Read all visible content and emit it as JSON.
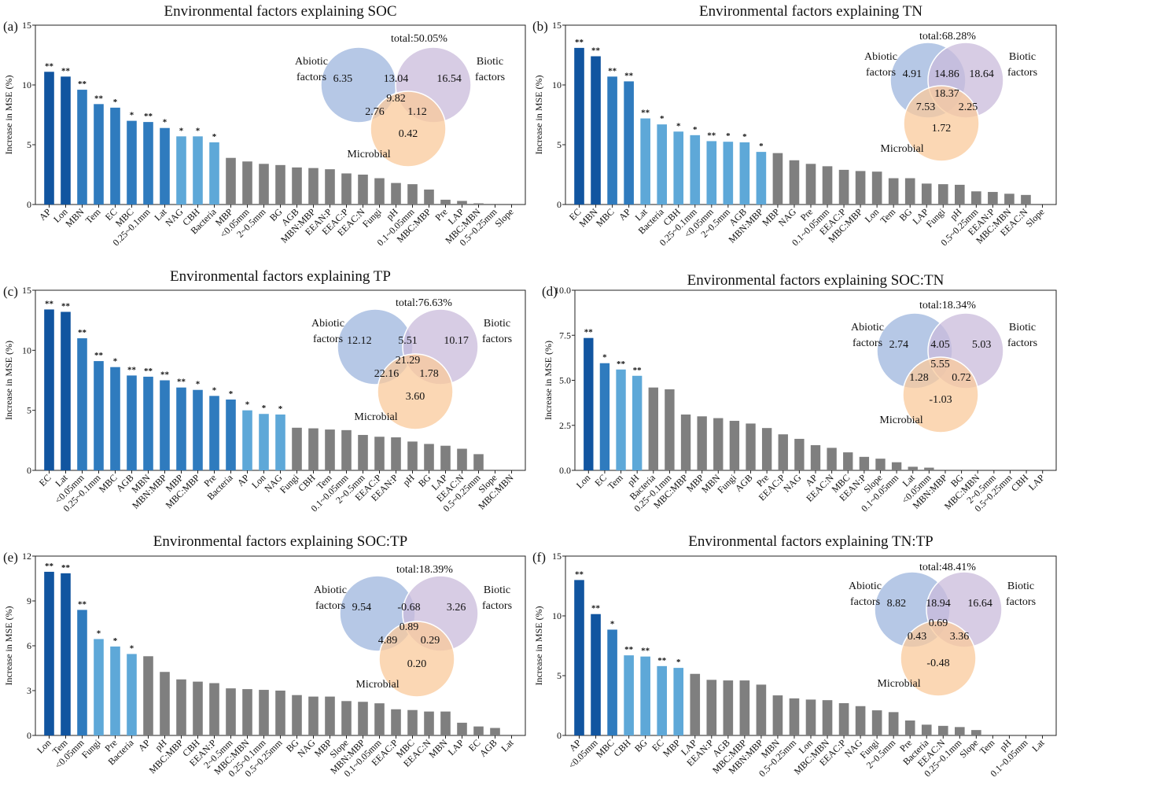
{
  "figure": {
    "ylabel": "Increase in MSE (%)",
    "colors": {
      "deep": "#1155a0",
      "mid": "#2f7bbe",
      "light": "#5ea8d8",
      "gray": "#7f7f7f",
      "abiotic": "#9db6de",
      "biotic": "#c9bbdb",
      "microbial": "#fac99b"
    }
  },
  "chart_data": [
    {
      "type": "bar",
      "panel": "(a)",
      "title": "Environmental factors explaining SOC",
      "ylabel": "Increase in MSE (%)",
      "ylim": [
        0,
        15
      ],
      "yticks": [
        "0",
        "5",
        "10",
        "15"
      ],
      "categories": [
        "AP",
        "Lon",
        "MBN",
        "Tem",
        "EC",
        "MBC",
        "0.25~0.1mm",
        "Lat",
        "NAG",
        "CBH",
        "Bacteria",
        "MBP",
        "<0.05mm",
        "2~0.5mm",
        "BG",
        "AGB",
        "MBN:MBP",
        "EEAN:P",
        "EEAC:P",
        "EEAC:N",
        "Fungi",
        "pH",
        "0.1~0.05mm",
        "MBC:MBP",
        "Pre",
        "LAP",
        "MBC:MBN",
        "0.5~0.25mm",
        "Slope"
      ],
      "values": [
        11.1,
        10.7,
        9.6,
        8.4,
        8.1,
        7.0,
        6.9,
        6.4,
        5.7,
        5.7,
        5.2,
        3.9,
        3.6,
        3.4,
        3.3,
        3.1,
        3.05,
        2.95,
        2.6,
        2.5,
        2.2,
        1.8,
        1.7,
        1.25,
        0.4,
        0.3,
        0.1,
        0.0,
        0.0
      ],
      "sig": [
        "**",
        "**",
        "**",
        "**",
        "*",
        "*",
        "**",
        "*",
        "*",
        "*",
        "*",
        "",
        "",
        "",
        "",
        "",
        "",
        "",
        "",
        "",
        "",
        "",
        "",
        "",
        "",
        "",
        "",
        "",
        ""
      ],
      "color_levels": [
        3,
        3,
        2,
        2,
        2,
        2,
        2,
        2,
        1,
        1,
        1,
        0,
        0,
        0,
        0,
        0,
        0,
        0,
        0,
        0,
        0,
        0,
        0,
        0,
        0,
        0,
        0,
        0,
        0
      ],
      "venn": {
        "total": "total:50.05%",
        "abiotic_label": [
          "Abiotic",
          "factors"
        ],
        "biotic_label": [
          "Biotic",
          "factors"
        ],
        "microbial_label": "Microbial",
        "a_only": "6.35",
        "b_only": "16.54",
        "m_only": "0.42",
        "ab": "13.04",
        "am": "2.76",
        "bm": "1.12",
        "abm": "9.82"
      }
    },
    {
      "type": "bar",
      "panel": "(b)",
      "title": "Environmental factors explaining TN",
      "ylabel": "Increase in MSE (%)",
      "ylim": [
        0,
        15
      ],
      "yticks": [
        "0",
        "5",
        "10",
        "15"
      ],
      "categories": [
        "EC",
        "MBN",
        "MBC",
        "AP",
        "Lat",
        "Bacteria",
        "CBH",
        "0.25~0.1mm",
        "<0.05mm",
        "2~0.5mm",
        "AGB",
        "MBN:MBP",
        "MBP",
        "NAG",
        "Pre",
        "0.1~0.05mm",
        "EEAC:P",
        "MBC:MBP",
        "Lon",
        "Tem",
        "BG",
        "LAP",
        "Fungi",
        "pH",
        "0.5~0.25mm",
        "EEAN:P",
        "MBC:MBN",
        "EEAC:N",
        "Slope"
      ],
      "values": [
        13.1,
        12.4,
        10.7,
        10.3,
        7.2,
        6.7,
        6.1,
        5.8,
        5.3,
        5.25,
        5.2,
        4.4,
        4.3,
        3.7,
        3.4,
        3.2,
        2.9,
        2.8,
        2.75,
        2.2,
        2.2,
        1.75,
        1.7,
        1.65,
        1.1,
        1.05,
        0.9,
        0.8,
        0.0
      ],
      "sig": [
        "**",
        "**",
        "**",
        "**",
        "**",
        "*",
        "*",
        "*",
        "**",
        "*",
        "*",
        "*",
        "",
        "",
        "",
        "",
        "",
        "",
        "",
        "",
        "",
        "",
        "",
        "",
        "",
        "",
        "",
        "",
        ""
      ],
      "color_levels": [
        3,
        3,
        2,
        2,
        1,
        1,
        1,
        1,
        1,
        1,
        1,
        1,
        0,
        0,
        0,
        0,
        0,
        0,
        0,
        0,
        0,
        0,
        0,
        0,
        0,
        0,
        0,
        0,
        0
      ],
      "venn": {
        "total": "total:68.28%",
        "abiotic_label": [
          "Abiotic",
          "factors"
        ],
        "biotic_label": [
          "Biotic",
          "factors"
        ],
        "microbial_label": "Microbial",
        "a_only": "4.91",
        "b_only": "18.64",
        "m_only": "1.72",
        "ab": "14.86",
        "am": "7.53",
        "bm": "2.25",
        "abm": "18.37"
      }
    },
    {
      "type": "bar",
      "panel": "(c)",
      "title": "Environmental factors explaining TP",
      "ylabel": "Increase in MSE (%)",
      "ylim": [
        0,
        15
      ],
      "yticks": [
        "0",
        "5",
        "10",
        "15"
      ],
      "categories": [
        "EC",
        "Lat",
        "<0.05mm",
        "0.25~0.1mm",
        "MBC",
        "AGB",
        "MBN",
        "MBN:MBP",
        "MBP",
        "MBC:MBP",
        "Pre",
        "Bacteria",
        "AP",
        "Lon",
        "NAG",
        "Fungi",
        "CBH",
        "Tem",
        "0.1~0.05mm",
        "2~0.5mm",
        "EEAC:P",
        "EEAN:P",
        "pH",
        "BG",
        "LAP",
        "EEAC:N",
        "0.5~0.25mm",
        "Slope",
        "MBC:MBN"
      ],
      "values": [
        13.4,
        13.2,
        11.0,
        9.1,
        8.6,
        7.9,
        7.8,
        7.5,
        6.9,
        6.7,
        6.2,
        5.9,
        5.0,
        4.7,
        4.65,
        3.55,
        3.5,
        3.4,
        3.35,
        2.95,
        2.8,
        2.75,
        2.4,
        2.2,
        2.05,
        1.8,
        1.35,
        0.0,
        0.0
      ],
      "sig": [
        "**",
        "**",
        "**",
        "**",
        "*",
        "**",
        "**",
        "**",
        "**",
        "*",
        "*",
        "*",
        "*",
        "*",
        "*",
        "",
        "",
        "",
        "",
        "",
        "",
        "",
        "",
        "",
        "",
        "",
        "",
        "",
        ""
      ],
      "color_levels": [
        3,
        3,
        2,
        2,
        2,
        2,
        2,
        2,
        2,
        2,
        2,
        2,
        1,
        1,
        1,
        0,
        0,
        0,
        0,
        0,
        0,
        0,
        0,
        0,
        0,
        0,
        0,
        0,
        0
      ],
      "venn": {
        "total": "total:76.63%",
        "abiotic_label": [
          "Abiotic",
          "factors"
        ],
        "biotic_label": [
          "Biotic",
          "factors"
        ],
        "microbial_label": "Microbial",
        "a_only": "12.12",
        "b_only": "10.17",
        "m_only": "3.60",
        "ab": "5.51",
        "am": "22.16",
        "bm": "1.78",
        "abm": "21.29"
      }
    },
    {
      "type": "bar",
      "panel": "(d)",
      "title": "Environmental factors explaining SOC:TN",
      "ylabel": "Increase in MSE (%)",
      "ylim": [
        0,
        10
      ],
      "yticks": [
        "0.0",
        "2.5",
        "5.0",
        "7.5",
        "10.0"
      ],
      "categories": [
        "Lon",
        "EC",
        "Tem",
        "pH",
        "Bacteria",
        "0.25~0.1mm",
        "MBC:MBP",
        "MBP",
        "MBN",
        "Fungi",
        "AGB",
        "Pre",
        "EEAC:P",
        "NAG",
        "AP",
        "EEAC:N",
        "MBC",
        "EEAN:P",
        "Slope",
        "0.1~0.05mm",
        "Lat",
        "<0.05mm",
        "MBN:MBP",
        "BG",
        "MBC:MBN",
        "2~0.5mm",
        "0.5~0.25mm",
        "CBH",
        "LAP"
      ],
      "values": [
        7.35,
        5.95,
        5.6,
        5.25,
        4.6,
        4.5,
        3.1,
        3.0,
        2.9,
        2.75,
        2.6,
        2.35,
        2.0,
        1.75,
        1.4,
        1.25,
        1.0,
        0.75,
        0.65,
        0.45,
        0.2,
        0.15,
        0.0,
        0.0,
        0.0,
        0.0,
        0.0,
        0.0,
        0.0
      ],
      "sig": [
        "**",
        "*",
        "**",
        "**",
        "",
        "",
        "",
        "",
        "",
        "",
        "",
        "",
        "",
        "",
        "",
        "",
        "",
        "",
        "",
        "",
        "",
        "",
        "",
        "",
        "",
        "",
        "",
        "",
        ""
      ],
      "color_levels": [
        3,
        2,
        1,
        1,
        0,
        0,
        0,
        0,
        0,
        0,
        0,
        0,
        0,
        0,
        0,
        0,
        0,
        0,
        0,
        0,
        0,
        0,
        0,
        0,
        0,
        0,
        0,
        0,
        0
      ],
      "venn": {
        "total": "total:18.34%",
        "abiotic_label": [
          "Abiotic",
          "factors"
        ],
        "biotic_label": [
          "Biotic",
          "factors"
        ],
        "microbial_label": "Microbial",
        "a_only": "2.74",
        "b_only": "5.03",
        "m_only": "-1.03",
        "ab": "4.05",
        "am": "1.28",
        "bm": "0.72",
        "abm": "5.55"
      }
    },
    {
      "type": "bar",
      "panel": "(e)",
      "title": "Environmental factors explaining SOC:TP",
      "ylabel": "Increase in MSE (%)",
      "ylim": [
        0,
        12
      ],
      "yticks": [
        "0",
        "3",
        "6",
        "9",
        "12"
      ],
      "categories": [
        "Lon",
        "Tem",
        "<0.05mm",
        "Fungi",
        "Pre",
        "Bacteria",
        "AP",
        "pH",
        "MBC:MBP",
        "CBH",
        "EEAN:P",
        "2~0.5mm",
        "MBC:MBN",
        "0.25~0.1mm",
        "0.5~0.25mm",
        "BG",
        "NAG",
        "MBP",
        "Slope",
        "MBN:MBP",
        "0.1~0.05mm",
        "EEAC:P",
        "MBC",
        "EEAC:N",
        "MBN",
        "LAP",
        "EC",
        "AGB",
        "Lat"
      ],
      "values": [
        10.95,
        10.85,
        8.4,
        6.45,
        5.95,
        5.45,
        5.3,
        4.25,
        3.75,
        3.6,
        3.5,
        3.15,
        3.1,
        3.05,
        3.0,
        2.7,
        2.6,
        2.6,
        2.3,
        2.25,
        2.15,
        1.75,
        1.7,
        1.6,
        1.6,
        0.85,
        0.6,
        0.5,
        0.0
      ],
      "sig": [
        "**",
        "**",
        "**",
        "*",
        "*",
        "*",
        "",
        "",
        "",
        "",
        "",
        "",
        "",
        "",
        "",
        "",
        "",
        "",
        "",
        "",
        "",
        "",
        "",
        "",
        "",
        "",
        "",
        "",
        ""
      ],
      "color_levels": [
        3,
        3,
        2,
        1,
        1,
        1,
        0,
        0,
        0,
        0,
        0,
        0,
        0,
        0,
        0,
        0,
        0,
        0,
        0,
        0,
        0,
        0,
        0,
        0,
        0,
        0,
        0,
        0,
        0
      ],
      "venn": {
        "total": "total:18.39%",
        "abiotic_label": [
          "Abiotic",
          "factors"
        ],
        "biotic_label": [
          "Biotic",
          "factors"
        ],
        "microbial_label": "Microbial",
        "a_only": "9.54",
        "b_only": "3.26",
        "m_only": "0.20",
        "ab": "-0.68",
        "am": "4.89",
        "bm": "0.29",
        "abm": "0.89"
      }
    },
    {
      "type": "bar",
      "panel": "(f)",
      "title": "Environmental factors explaining TN:TP",
      "ylabel": "Increase in MSE (%)",
      "ylim": [
        0,
        15
      ],
      "yticks": [
        "0",
        "5",
        "10",
        "15"
      ],
      "categories": [
        "AP",
        "<0.05mm",
        "MBC",
        "CBH",
        "BG",
        "EC",
        "MBP",
        "LAP",
        "EEAN:P",
        "AGB",
        "MBC:MBP",
        "MBN:MBP",
        "MBN",
        "0.5~0.25mm",
        "Lon",
        "MBC:MBN",
        "EEAC:P",
        "NAG",
        "Fungi",
        "2~0.5mm",
        "Pre",
        "Bacteria",
        "EEAC:N",
        "0.25~0.1mm",
        "Slope",
        "Tem",
        "pH",
        "0.1~0.05mm",
        "Lat"
      ],
      "values": [
        13.0,
        10.15,
        8.85,
        6.7,
        6.6,
        5.8,
        5.65,
        5.15,
        4.65,
        4.6,
        4.6,
        4.25,
        3.35,
        3.1,
        3.0,
        2.95,
        2.7,
        2.45,
        2.1,
        1.95,
        1.25,
        0.9,
        0.8,
        0.7,
        0.45,
        0.0,
        0.0,
        0.0,
        0.0
      ],
      "sig": [
        "**",
        "**",
        "*",
        "**",
        "**",
        "**",
        "*",
        "",
        "",
        "",
        "",
        "",
        "",
        "",
        "",
        "",
        "",
        "",
        "",
        "",
        "",
        "",
        "",
        "",
        "",
        "",
        "",
        "",
        ""
      ],
      "color_levels": [
        3,
        3,
        2,
        1,
        1,
        1,
        1,
        0,
        0,
        0,
        0,
        0,
        0,
        0,
        0,
        0,
        0,
        0,
        0,
        0,
        0,
        0,
        0,
        0,
        0,
        0,
        0,
        0,
        0
      ],
      "venn": {
        "total": "total:48.41%",
        "abiotic_label": [
          "Abiotic",
          "factors"
        ],
        "biotic_label": [
          "Biotic",
          "factors"
        ],
        "microbial_label": "Microbial",
        "a_only": "8.82",
        "b_only": "16.64",
        "m_only": "-0.48",
        "ab": "18.94",
        "am": "0.43",
        "bm": "3.36",
        "abm": "0.69"
      }
    }
  ]
}
